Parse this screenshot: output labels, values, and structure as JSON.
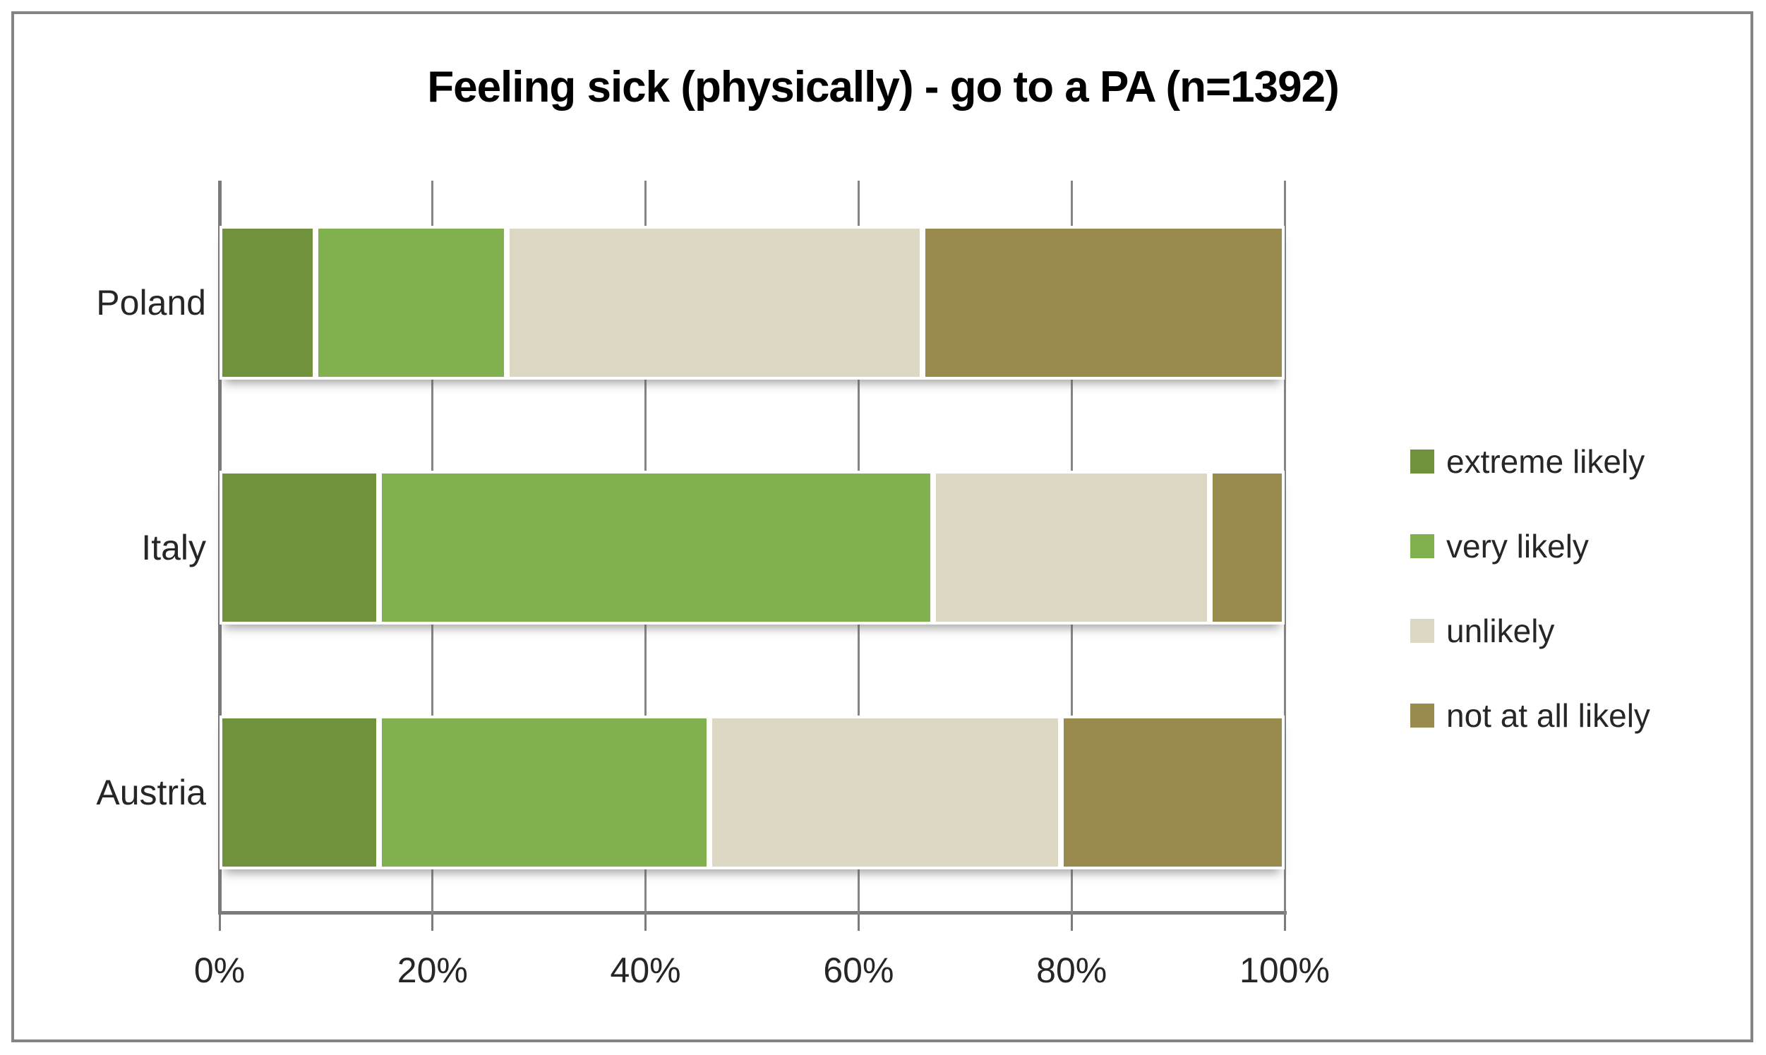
{
  "title": "Feeling sick (physically) - go to a PA (n=1392)",
  "x_axis": {
    "tick_labels": [
      "0%",
      "20%",
      "40%",
      "60%",
      "80%",
      "100%"
    ]
  },
  "colors": {
    "axis": "#7b7b7b",
    "gridline": "#858585",
    "frame_border": "#848484",
    "label_text": "#262626",
    "title_text": "#000000",
    "segment_border": "#ffffff"
  },
  "legend": {
    "position": "right",
    "items": [
      {
        "label": "extreme likely",
        "color": "#70923c"
      },
      {
        "label": "very likely",
        "color": "#81b04e"
      },
      {
        "label": "unlikely",
        "color": "#ddd8c3"
      },
      {
        "label": "not at all likely",
        "color": "#988b4d"
      }
    ]
  },
  "chart_data": {
    "type": "bar",
    "orientation": "horizontal-stacked",
    "title": "Feeling sick (physically) - go to a PA (n=1392)",
    "categories": [
      "Poland",
      "Italy",
      "Austria"
    ],
    "series": [
      {
        "name": "extreme likely",
        "color": "#70923c",
        "values": [
          9,
          15,
          15
        ]
      },
      {
        "name": "very likely",
        "color": "#81b04e",
        "values": [
          18,
          52,
          31
        ]
      },
      {
        "name": "unlikely",
        "color": "#ddd8c3",
        "values": [
          39,
          26,
          33
        ]
      },
      {
        "name": "not at all likely",
        "color": "#988b4d",
        "values": [
          34,
          7,
          21
        ]
      }
    ],
    "x_range": [
      0,
      100
    ],
    "x_tick_step": 20,
    "x_tick_labels": [
      "0%",
      "20%",
      "40%",
      "60%",
      "80%",
      "100%"
    ],
    "grid": true,
    "legend_position": "right",
    "units": "%"
  }
}
